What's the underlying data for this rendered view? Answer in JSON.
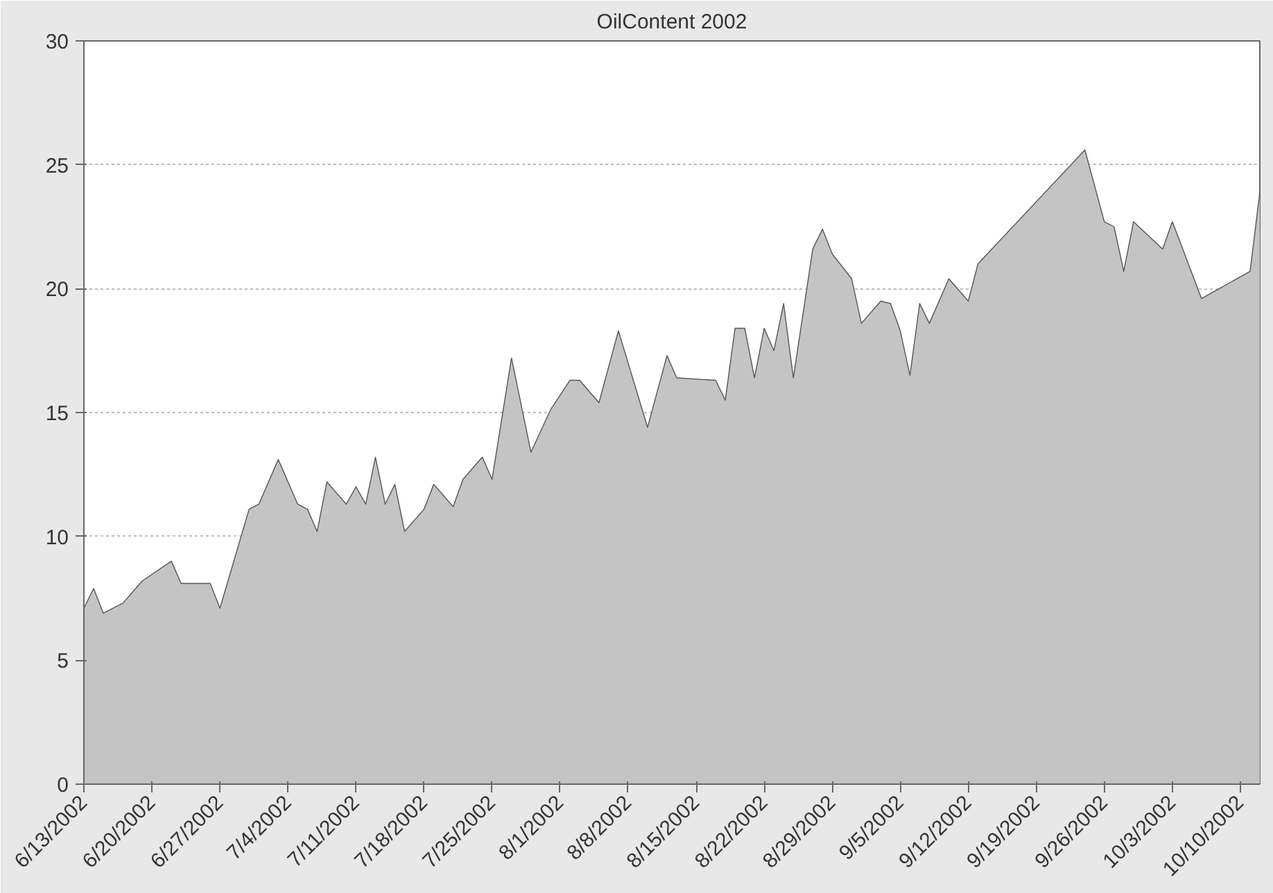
{
  "chart_data": {
    "type": "area",
    "title": "OilContent 2002",
    "x": [
      "2002-06-13",
      "2002-06-14",
      "2002-06-15",
      "2002-06-17",
      "2002-06-19",
      "2002-06-22",
      "2002-06-23",
      "2002-06-26",
      "2002-06-27",
      "2002-06-30",
      "2002-07-01",
      "2002-07-03",
      "2002-07-05",
      "2002-07-06",
      "2002-07-07",
      "2002-07-08",
      "2002-07-10",
      "2002-07-11",
      "2002-07-12",
      "2002-07-13",
      "2002-07-14",
      "2002-07-15",
      "2002-07-16",
      "2002-07-18",
      "2002-07-19",
      "2002-07-21",
      "2002-07-22",
      "2002-07-24",
      "2002-07-25",
      "2002-07-27",
      "2002-07-29",
      "2002-07-31",
      "2002-08-02",
      "2002-08-03",
      "2002-08-05",
      "2002-08-07",
      "2002-08-10",
      "2002-08-12",
      "2002-08-13",
      "2002-08-17",
      "2002-08-18",
      "2002-08-19",
      "2002-08-20",
      "2002-08-21",
      "2002-08-22",
      "2002-08-23",
      "2002-08-24",
      "2002-08-25",
      "2002-08-27",
      "2002-08-28",
      "2002-08-29",
      "2002-08-31",
      "2002-09-01",
      "2002-09-03",
      "2002-09-04",
      "2002-09-05",
      "2002-09-06",
      "2002-09-07",
      "2002-09-08",
      "2002-09-10",
      "2002-09-12",
      "2002-09-13",
      "2002-09-24",
      "2002-09-26",
      "2002-09-27",
      "2002-09-28",
      "2002-09-29",
      "2002-10-02",
      "2002-10-03",
      "2002-10-06",
      "2002-10-11",
      "2002-10-12"
    ],
    "series": [
      {
        "color": "#c4c4c4",
        "values": [
          7.1,
          7.9,
          6.9,
          7.3,
          8.2,
          9.0,
          8.1,
          8.1,
          7.1,
          11.1,
          11.3,
          13.1,
          11.3,
          11.1,
          10.2,
          12.2,
          11.3,
          12.0,
          11.3,
          13.2,
          11.3,
          12.1,
          10.2,
          11.1,
          12.1,
          11.2,
          12.3,
          13.2,
          12.3,
          17.2,
          13.4,
          15.1,
          16.3,
          16.3,
          15.4,
          18.3,
          14.4,
          17.3,
          16.4,
          16.3,
          15.5,
          18.4,
          18.4,
          16.4,
          18.4,
          17.5,
          19.4,
          16.4,
          21.6,
          22.4,
          21.4,
          20.4,
          18.6,
          19.5,
          19.4,
          18.3,
          16.5,
          19.4,
          18.6,
          20.4,
          19.5,
          21.0,
          25.6,
          22.7,
          22.5,
          20.7,
          22.7,
          21.6,
          22.7,
          19.6,
          20.7,
          23.9
        ]
      }
    ],
    "xlim": [
      "2002-06-13",
      "2002-10-12"
    ],
    "xticks": [
      {
        "value": "2002-06-13",
        "label": "6/13/2002"
      },
      {
        "value": "2002-06-20",
        "label": "6/20/2002"
      },
      {
        "value": "2002-06-27",
        "label": "6/27/2002"
      },
      {
        "value": "2002-07-04",
        "label": "7/4/2002"
      },
      {
        "value": "2002-07-11",
        "label": "7/11/2002"
      },
      {
        "value": "2002-07-18",
        "label": "7/18/2002"
      },
      {
        "value": "2002-07-25",
        "label": "7/25/2002"
      },
      {
        "value": "2002-08-01",
        "label": "8/1/2002"
      },
      {
        "value": "2002-08-08",
        "label": "8/8/2002"
      },
      {
        "value": "2002-08-15",
        "label": "8/15/2002"
      },
      {
        "value": "2002-08-22",
        "label": "8/22/2002"
      },
      {
        "value": "2002-08-29",
        "label": "8/29/2002"
      },
      {
        "value": "2002-09-05",
        "label": "9/5/2002"
      },
      {
        "value": "2002-09-12",
        "label": "9/12/2002"
      },
      {
        "value": "2002-09-19",
        "label": "9/19/2002"
      },
      {
        "value": "2002-09-26",
        "label": "9/26/2002"
      },
      {
        "value": "2002-10-03",
        "label": "10/3/2002"
      },
      {
        "value": "2002-10-10",
        "label": "10/10/2002"
      }
    ],
    "ylim": [
      0,
      30
    ],
    "yticks": [
      0,
      5,
      10,
      15,
      20,
      25,
      30
    ],
    "grid": "y"
  }
}
